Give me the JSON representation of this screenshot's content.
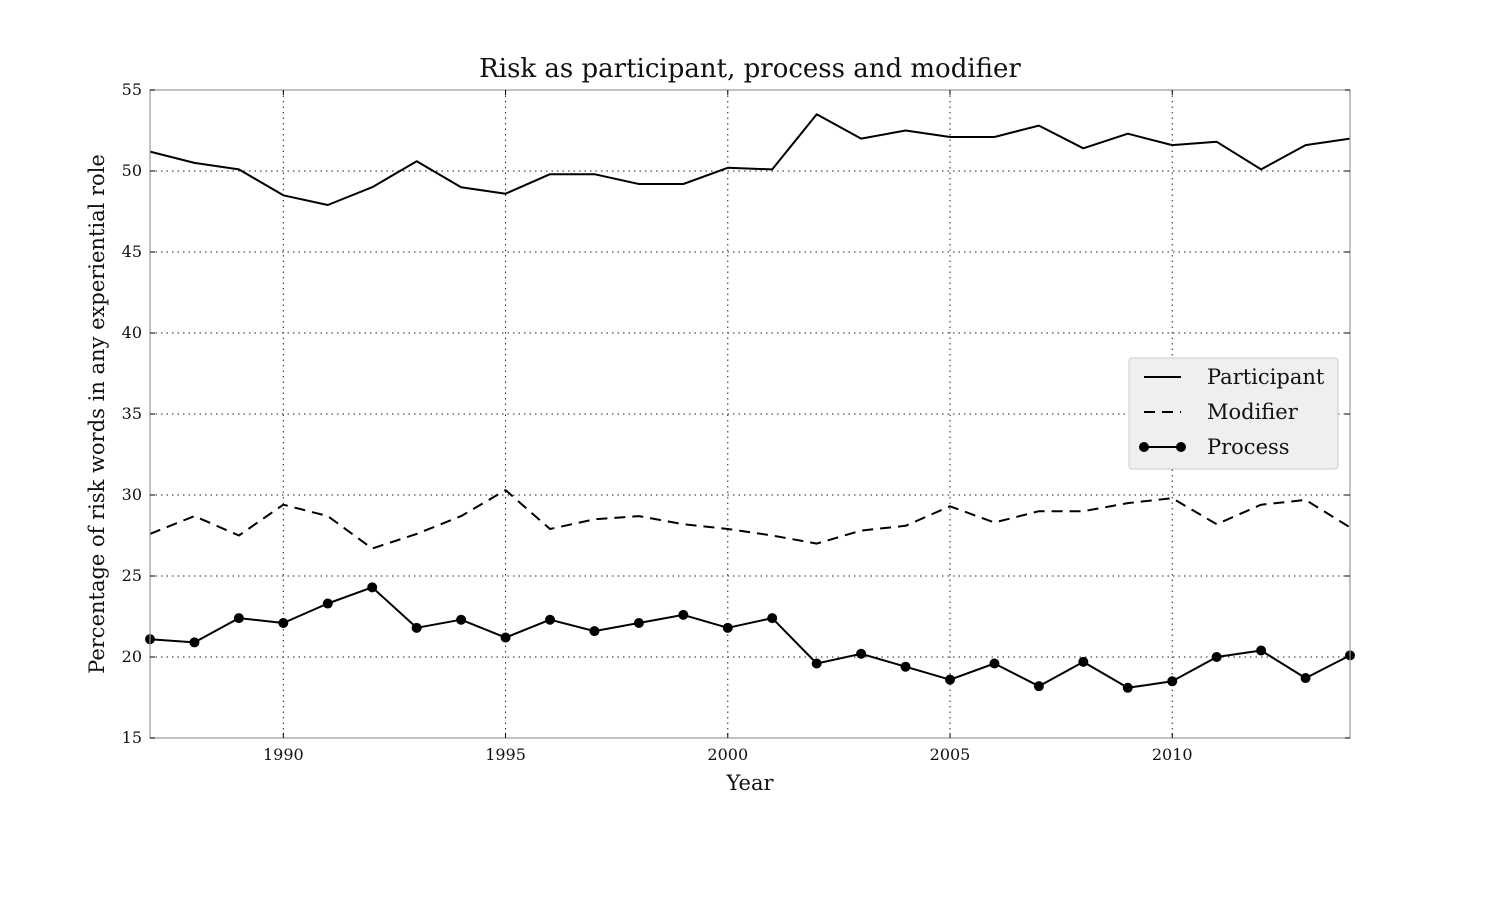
{
  "chart_data": {
    "type": "line",
    "title": "Risk as participant, process and modifier",
    "xlabel": "Year",
    "ylabel": "Percentage of risk words in any experiential role",
    "xlim": [
      1987,
      2014
    ],
    "ylim": [
      15,
      55
    ],
    "xticks": [
      1990,
      1995,
      2000,
      2005,
      2010
    ],
    "yticks": [
      15,
      20,
      25,
      30,
      35,
      40,
      45,
      50,
      55
    ],
    "grid": true,
    "grid_style": "dotted",
    "legend_position": "right",
    "x": [
      1987,
      1988,
      1989,
      1990,
      1991,
      1992,
      1993,
      1994,
      1995,
      1996,
      1997,
      1998,
      1999,
      2000,
      2001,
      2002,
      2003,
      2004,
      2005,
      2006,
      2007,
      2008,
      2009,
      2010,
      2011,
      2012,
      2013,
      2014
    ],
    "series": [
      {
        "name": "Participant",
        "line_style": "solid",
        "marker": "none",
        "color": "#000000",
        "values": [
          51.2,
          50.5,
          50.1,
          48.5,
          47.9,
          49.0,
          50.6,
          49.0,
          48.6,
          49.8,
          49.8,
          49.2,
          49.2,
          50.2,
          50.1,
          53.5,
          52.0,
          52.5,
          52.1,
          52.1,
          52.8,
          51.4,
          52.3,
          51.6,
          51.8,
          50.1,
          51.6,
          52.0
        ]
      },
      {
        "name": "Modifier",
        "line_style": "dashed",
        "marker": "none",
        "color": "#000000",
        "values": [
          27.6,
          28.7,
          27.5,
          29.4,
          28.7,
          26.7,
          27.6,
          28.7,
          30.3,
          27.9,
          28.5,
          28.7,
          28.2,
          27.9,
          27.5,
          27.0,
          27.8,
          28.1,
          29.3,
          28.3,
          29.0,
          29.0,
          29.5,
          29.8,
          28.2,
          29.4,
          29.7,
          28.0
        ]
      },
      {
        "name": "Process",
        "line_style": "solid",
        "marker": "circle",
        "color": "#000000",
        "values": [
          21.1,
          20.9,
          22.4,
          22.1,
          23.3,
          24.3,
          21.8,
          22.3,
          21.2,
          22.3,
          21.6,
          22.1,
          22.6,
          21.8,
          22.4,
          19.6,
          20.2,
          19.4,
          18.6,
          19.6,
          18.2,
          19.7,
          18.1,
          18.5,
          20.0,
          20.4,
          18.7,
          20.1
        ]
      }
    ]
  }
}
